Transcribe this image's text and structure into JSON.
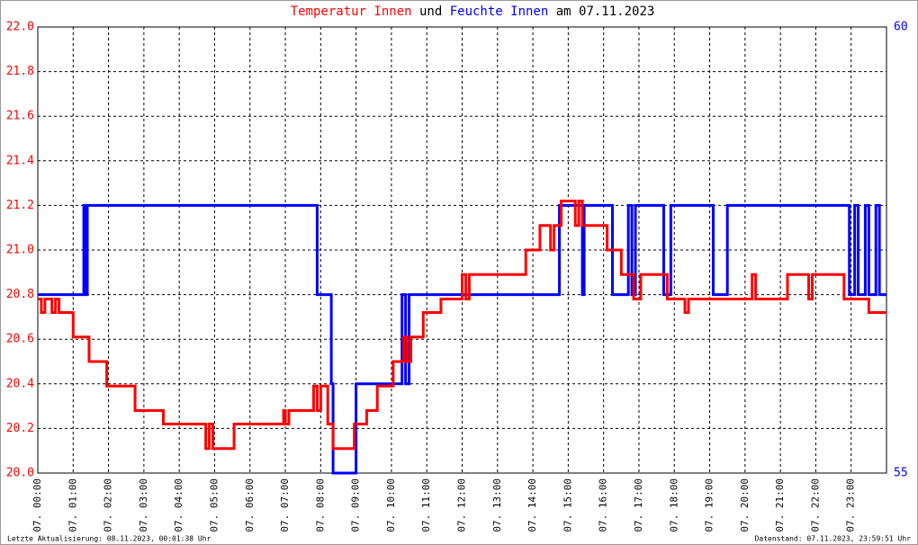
{
  "chart_data": {
    "type": "line",
    "title": [
      "Temperatur Innen",
      "und",
      "Feuchte Innen",
      "am 07.11.2023"
    ],
    "notes": [
      "Letzte Aktualisierung: 08.11.2023, 00:01:38 Uhr",
      "Datenstand: 07.11.2023, 23:59:51 Uhr"
    ],
    "xlim": [
      0,
      24
    ],
    "xticks": [
      {
        "value": 0,
        "label": "07. 00:00"
      },
      {
        "value": 1,
        "label": "07. 01:00"
      },
      {
        "value": 2,
        "label": "07. 02:00"
      },
      {
        "value": 3,
        "label": "07. 03:00"
      },
      {
        "value": 4,
        "label": "07. 04:00"
      },
      {
        "value": 5,
        "label": "07. 05:00"
      },
      {
        "value": 6,
        "label": "07. 06:00"
      },
      {
        "value": 7,
        "label": "07. 07:00"
      },
      {
        "value": 8,
        "label": "07. 08:00"
      },
      {
        "value": 9,
        "label": "07. 09:00"
      },
      {
        "value": 10,
        "label": "07. 10:00"
      },
      {
        "value": 11,
        "label": "07. 11:00"
      },
      {
        "value": 12,
        "label": "07. 12:00"
      },
      {
        "value": 13,
        "label": "07. 13:00"
      },
      {
        "value": 14,
        "label": "07. 14:00"
      },
      {
        "value": 15,
        "label": "07. 15:00"
      },
      {
        "value": 16,
        "label": "07. 16:00"
      },
      {
        "value": 17,
        "label": "07. 17:00"
      },
      {
        "value": 18,
        "label": "07. 18:00"
      },
      {
        "value": 19,
        "label": "07. 19:00"
      },
      {
        "value": 20,
        "label": "07. 20:00"
      },
      {
        "value": 21,
        "label": "07. 21:00"
      },
      {
        "value": 22,
        "label": "07. 22:00"
      },
      {
        "value": 23,
        "label": "07. 23:00"
      }
    ],
    "ylim": [
      20,
      22
    ],
    "yticks": [
      {
        "value": 20,
        "label": "20.0"
      },
      20.2,
      20.4,
      20.6,
      20.8,
      {
        "value": 21,
        "label": "21.0"
      },
      21.2,
      21.4,
      21.6,
      21.8,
      {
        "value": 22,
        "label": "22.0"
      }
    ],
    "y2lim": [
      55,
      60
    ],
    "y2ticks": [
      55,
      60
    ],
    "grid": true,
    "series": [
      {
        "color": "#ff0000",
        "x": [
          0,
          0.1,
          0.1,
          0.2,
          0.2,
          0.4,
          0.4,
          0.5,
          0.5,
          0.6,
          0.6,
          1.0,
          1.0,
          1.45,
          1.45,
          1.95,
          1.95,
          2.75,
          2.75,
          3.55,
          3.55,
          4.75,
          4.75,
          4.85,
          4.85,
          4.95,
          4.95,
          5.55,
          5.55,
          6.95,
          6.95,
          7.0,
          7.0,
          7.1,
          7.1,
          7.8,
          7.8,
          7.9,
          7.9,
          8.0,
          8.0,
          8.2,
          8.2,
          8.35,
          8.35,
          8.95,
          8.95,
          9.3,
          9.3,
          9.6,
          9.6,
          10.05,
          10.05,
          10.35,
          10.35,
          10.45,
          10.45,
          10.55,
          10.55,
          10.9,
          10.9,
          11.4,
          11.4,
          12.0,
          12.0,
          12.1,
          12.1,
          12.2,
          12.2,
          13.8,
          13.8,
          14.2,
          14.2,
          14.5,
          14.5,
          14.6,
          14.6,
          14.8,
          14.8,
          15.2,
          15.2,
          15.3,
          15.3,
          15.4,
          15.4,
          16.1,
          16.1,
          16.5,
          16.5,
          16.85,
          16.85,
          17.05,
          17.05,
          17.8,
          17.8,
          18.3,
          18.3,
          18.4,
          18.4,
          20.2,
          20.2,
          20.3,
          20.3,
          21.2,
          21.2,
          21.8,
          21.8,
          21.9,
          21.9,
          22.8,
          22.8,
          23.5,
          23.5,
          24
        ],
        "values": [
          20.78,
          20.78,
          20.72,
          20.72,
          20.78,
          20.78,
          20.72,
          20.72,
          20.78,
          20.78,
          20.72,
          20.72,
          20.61,
          20.61,
          20.5,
          20.5,
          20.39,
          20.39,
          20.28,
          20.28,
          20.22,
          20.22,
          20.11,
          20.11,
          20.22,
          20.22,
          20.11,
          20.11,
          20.22,
          20.22,
          20.28,
          20.28,
          20.22,
          20.22,
          20.28,
          20.28,
          20.39,
          20.39,
          20.28,
          20.28,
          20.39,
          20.39,
          20.22,
          20.22,
          20.11,
          20.11,
          20.22,
          20.22,
          20.28,
          20.28,
          20.39,
          20.39,
          20.5,
          20.5,
          20.61,
          20.61,
          20.5,
          20.5,
          20.61,
          20.61,
          20.72,
          20.72,
          20.78,
          20.78,
          20.89,
          20.89,
          20.78,
          20.78,
          20.89,
          20.89,
          21.0,
          21.0,
          21.11,
          21.11,
          21.0,
          21.0,
          21.11,
          21.11,
          21.22,
          21.22,
          21.11,
          21.11,
          21.22,
          21.22,
          21.11,
          21.11,
          21.0,
          21.0,
          20.89,
          20.89,
          20.78,
          20.78,
          20.89,
          20.89,
          20.78,
          20.78,
          20.72,
          20.72,
          20.78,
          20.78,
          20.89,
          20.89,
          20.78,
          20.78,
          20.89,
          20.89,
          20.78,
          20.78,
          20.89,
          20.89,
          20.78,
          20.78,
          20.72,
          20.72
        ]
      },
      {
        "color": "#0000ff",
        "axis": "y2",
        "x": [
          0,
          1.3,
          1.3,
          1.35,
          1.35,
          1.4,
          1.4,
          7.9,
          7.9,
          8.3,
          8.3,
          8.35,
          8.35,
          9.0,
          9.0,
          10.3,
          10.3,
          10.4,
          10.4,
          10.5,
          10.5,
          14.75,
          14.75,
          15.4,
          15.4,
          15.45,
          15.45,
          16.25,
          16.25,
          16.7,
          16.7,
          16.8,
          16.8,
          16.9,
          16.9,
          17.7,
          17.7,
          17.9,
          17.9,
          19.1,
          19.1,
          19.5,
          19.5,
          22.95,
          22.95,
          23.1,
          23.1,
          23.2,
          23.2,
          23.4,
          23.4,
          23.5,
          23.5,
          23.7,
          23.7,
          23.8,
          23.8,
          24
        ],
        "values": [
          57,
          57,
          58,
          58,
          57,
          57,
          58,
          58,
          57,
          57,
          56,
          56,
          55,
          55,
          56,
          56,
          57,
          57,
          56,
          56,
          57,
          57,
          58,
          58,
          57,
          57,
          58,
          58,
          57,
          57,
          58,
          58,
          57,
          57,
          58,
          58,
          57,
          57,
          58,
          58,
          57,
          57,
          58,
          58,
          57,
          57,
          58,
          58,
          57,
          57,
          58,
          58,
          57,
          57,
          58,
          58,
          57,
          57
        ]
      }
    ]
  }
}
